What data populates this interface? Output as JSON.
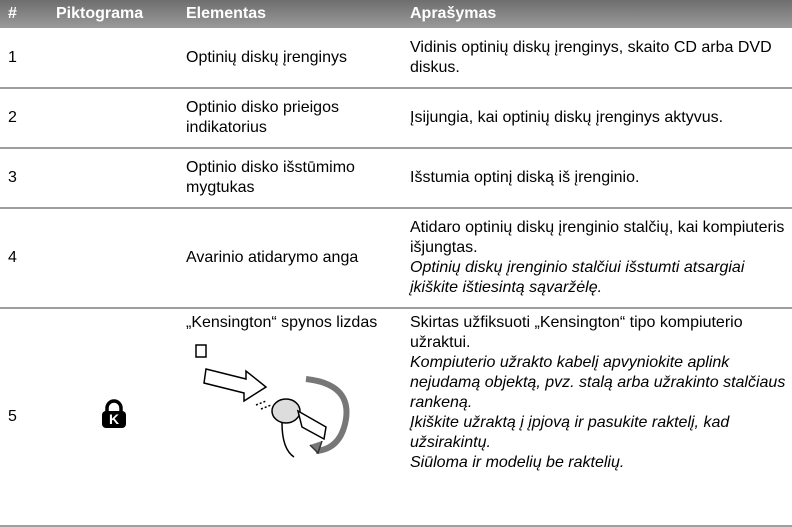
{
  "table": {
    "header": [
      "#",
      "Piktograma",
      "Elementas",
      "Aprašymas"
    ],
    "rows": [
      {
        "number": "1",
        "element": "Optinių diskų įrenginys",
        "description": [
          "Vidinis optinių diskų įrenginys, skaito CD arba DVD diskus."
        ],
        "notes": []
      },
      {
        "number": "2",
        "element": "Optinio disko prieigos indikatorius",
        "description": [
          "Įsijungia, kai optinių diskų įrenginys aktyvus."
        ],
        "notes": []
      },
      {
        "number": "3",
        "element": "Optinio disko išstūmimo mygtukas",
        "description": [
          "Išstumia optinį diską iš įrenginio."
        ],
        "notes": []
      },
      {
        "number": "4",
        "element": "Avarinio atidarymo anga",
        "description": [
          "Atidaro optinių diskų įrenginio stalčių, kai kompiuteris išjungtas."
        ],
        "notes": [
          "Optinių diskų įrenginio stalčiui išstumti atsargiai įkiškite ištiesintą sąvaržėlę."
        ]
      },
      {
        "number": "5",
        "element": "„Kensington“ spynos lizdas",
        "description": [
          "Skirtas užfiksuoti „Kensington“ tipo kompiuterio užraktui."
        ],
        "notes": [
          "Kompiuterio užrakto kabelį apvyniokite aplink nejudamą objektą, pvz. stalą arba užrakinto stalčiaus rankeną.",
          "Įkiškite užraktą į įpjovą ir pasukite raktelį, kad užsirakintų.",
          "Siūloma ir modelių be raktelių."
        ]
      }
    ]
  }
}
